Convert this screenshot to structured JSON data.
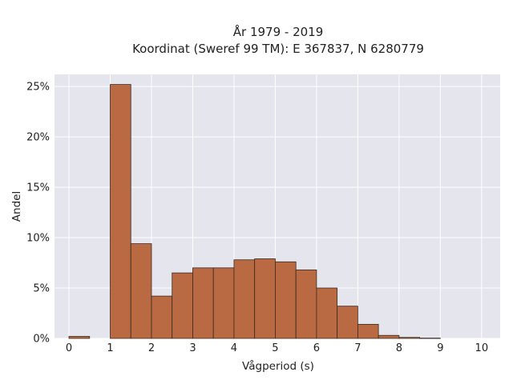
{
  "chart_data": {
    "type": "bar",
    "title_lines": [
      "År 1979 - 2019",
      "Koordinat (Sweref 99 TM): E 367837, N 6280779"
    ],
    "xlabel": "Vågperiod (s)",
    "ylabel": "Andel",
    "bin_width": 0.5,
    "bin_starts": [
      0,
      0.5,
      1,
      1.5,
      2,
      2.5,
      3,
      3.5,
      4,
      4.5,
      5,
      5.5,
      6,
      6.5,
      7,
      7.5,
      8,
      8.5,
      9,
      9.5
    ],
    "values": [
      0.2,
      0.0,
      25.2,
      9.4,
      4.2,
      6.5,
      7.0,
      7.0,
      7.8,
      7.9,
      7.6,
      6.8,
      5.0,
      3.2,
      1.4,
      0.3,
      0.1,
      0.03,
      0.0,
      0.0
    ],
    "value_unit": "%",
    "xlim": [
      -0.35,
      10.45
    ],
    "ylim": [
      0,
      26.2
    ],
    "x_ticks": [
      0,
      1,
      2,
      3,
      4,
      5,
      6,
      7,
      8,
      9,
      10
    ],
    "x_tick_labels": [
      "0",
      "1",
      "2",
      "3",
      "4",
      "5",
      "6",
      "7",
      "8",
      "9",
      "10"
    ],
    "y_ticks": [
      0,
      5,
      10,
      15,
      20,
      25
    ],
    "y_tick_labels": [
      "0%",
      "5%",
      "10%",
      "15%",
      "20%",
      "25%"
    ],
    "grid": true,
    "colors": {
      "bar_fill": "#b96a42",
      "bar_edge": "#3a2a20",
      "plot_background": "#e5e5ee",
      "grid": "#ffffff"
    }
  }
}
